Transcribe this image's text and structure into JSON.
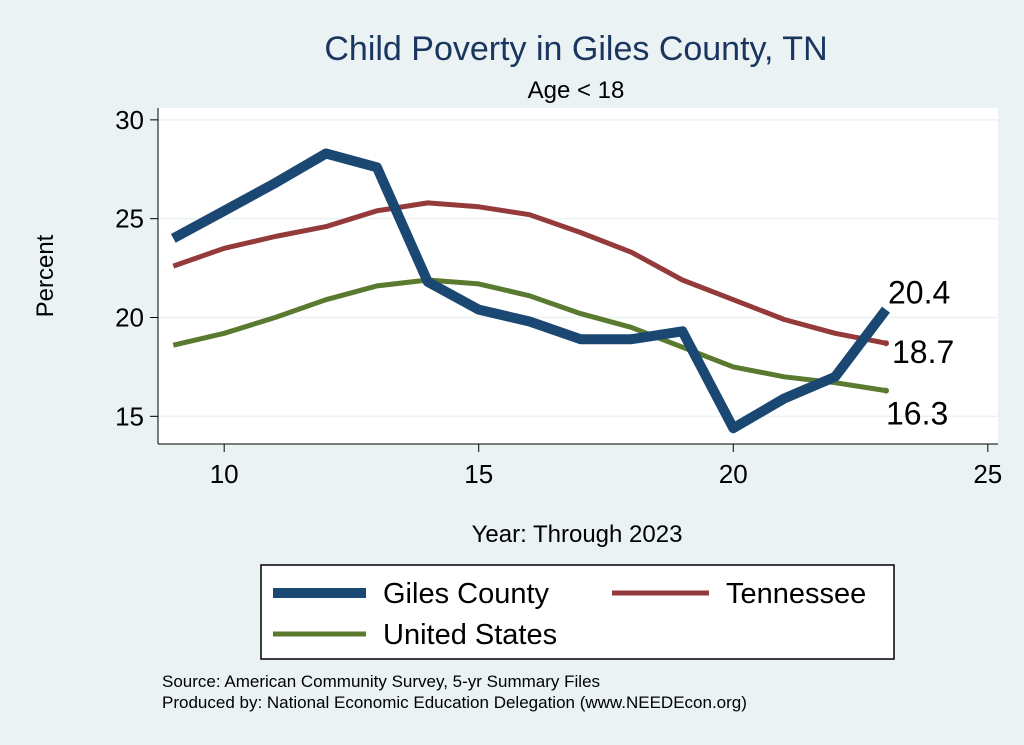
{
  "chart_data": {
    "type": "line",
    "title": "Child Poverty in Giles County, TN",
    "subtitle": "Age < 18",
    "xlabel": "Year: Through 2023",
    "ylabel": "Percent",
    "xlim": [
      8.7,
      25.2
    ],
    "ylim": [
      13.6,
      30.6
    ],
    "xticks": [
      10,
      15,
      20,
      25
    ],
    "yticks": [
      15,
      20,
      25,
      30
    ],
    "grid": true,
    "legend_position": "bottom",
    "series": [
      {
        "name": "Giles County",
        "color": "#1a4872",
        "width": 10,
        "x": [
          9,
          10,
          11,
          12,
          13,
          14,
          15,
          16,
          17,
          18,
          19,
          20,
          21,
          22,
          23
        ],
        "y": [
          24.0,
          25.4,
          26.8,
          28.3,
          27.6,
          21.8,
          20.4,
          19.8,
          18.9,
          18.9,
          19.3,
          14.4,
          15.9,
          17.0,
          20.4
        ],
        "end_label": "20.4"
      },
      {
        "name": "Tennessee",
        "color": "#943a3a",
        "width": 5,
        "x": [
          9,
          10,
          11,
          12,
          13,
          14,
          15,
          16,
          17,
          18,
          19,
          20,
          21,
          22,
          23
        ],
        "y": [
          22.6,
          23.5,
          24.1,
          24.6,
          25.4,
          25.8,
          25.6,
          25.2,
          24.3,
          23.3,
          21.9,
          20.9,
          19.9,
          19.2,
          18.7
        ],
        "end_label": "18.7"
      },
      {
        "name": "United States",
        "color": "#5a7a2f",
        "width": 5,
        "x": [
          9,
          10,
          11,
          12,
          13,
          14,
          15,
          16,
          17,
          18,
          19,
          20,
          21,
          22,
          23
        ],
        "y": [
          18.6,
          19.2,
          20.0,
          20.9,
          21.6,
          21.9,
          21.7,
          21.1,
          20.2,
          19.5,
          18.5,
          17.5,
          17.0,
          16.7,
          16.3
        ],
        "end_label": "16.3"
      }
    ],
    "notes": [
      "Source: American Community Survey, 5-yr Summary Files",
      "Produced by: National Economic Education Delegation (www.NEEDEcon.org)"
    ]
  }
}
